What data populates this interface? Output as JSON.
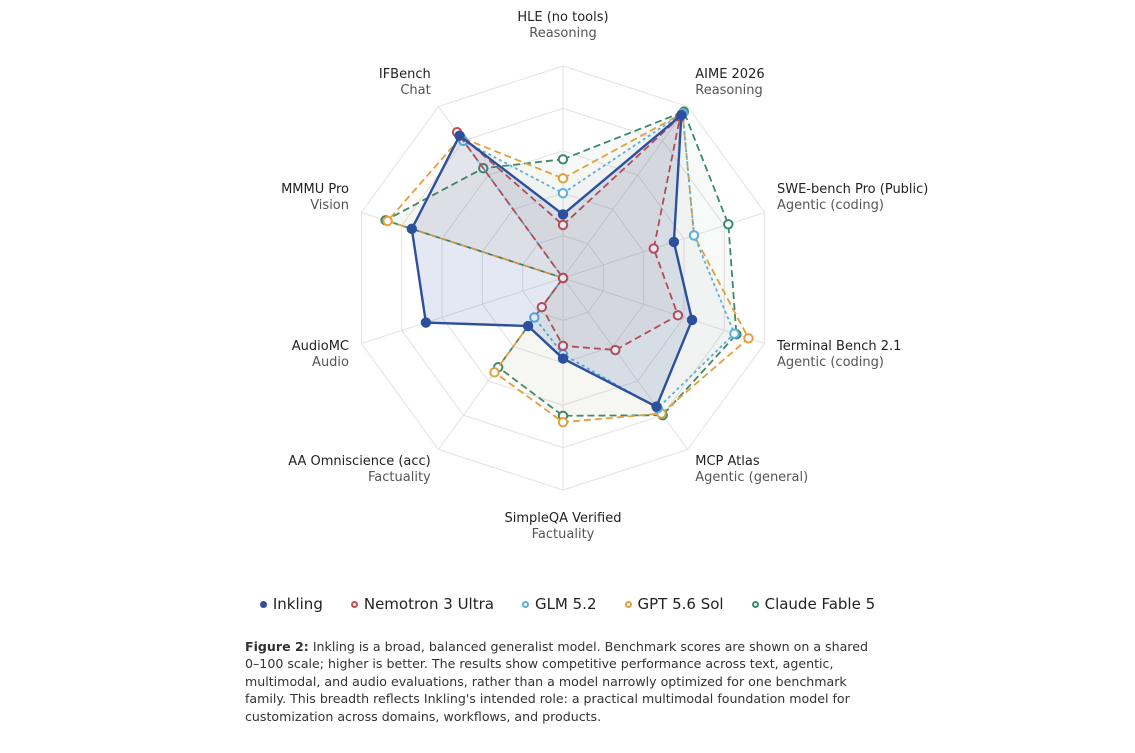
{
  "chart_data": {
    "type": "radar",
    "scale": [
      0,
      100
    ],
    "axes": [
      {
        "title": "HLE (no tools)",
        "subtitle": "Reasoning"
      },
      {
        "title": "AIME 2026",
        "subtitle": "Reasoning"
      },
      {
        "title": "SWE-bench Pro (Public)",
        "subtitle": "Agentic (coding)"
      },
      {
        "title": "Terminal Bench 2.1",
        "subtitle": "Agentic (coding)"
      },
      {
        "title": "MCP Atlas",
        "subtitle": "Agentic (general)"
      },
      {
        "title": "SimpleQA Verified",
        "subtitle": "Factuality"
      },
      {
        "title": "AA Omniscience (acc)",
        "subtitle": "Factuality"
      },
      {
        "title": "AudioMC",
        "subtitle": "Audio"
      },
      {
        "title": "MMMU Pro",
        "subtitle": "Vision"
      },
      {
        "title": "IFBench",
        "subtitle": "Chat"
      }
    ],
    "series": [
      {
        "name": "Inkling",
        "color": "#2c4f9e",
        "dash": "solid",
        "filled_marker": true,
        "values": [
          30,
          95,
          55,
          64,
          75,
          38,
          28,
          68,
          75,
          83
        ]
      },
      {
        "name": "Nemotron 3 Ultra",
        "color": "#c44e4e",
        "dash": "dashed",
        "filled_marker": false,
        "values": [
          25,
          94,
          45,
          57,
          42,
          32,
          17,
          0,
          0,
          85
        ]
      },
      {
        "name": "GLM 5.2",
        "color": "#5aaee0",
        "dash": "dotted",
        "filled_marker": false,
        "values": [
          40,
          96,
          65,
          85,
          76,
          36,
          23,
          0,
          0,
          80
        ]
      },
      {
        "name": "GPT 5.6 Sol",
        "color": "#e0a040",
        "dash": "dashed",
        "filled_marker": false,
        "values": [
          47,
          96,
          65,
          92,
          79,
          68,
          55,
          0,
          87,
          82
        ]
      },
      {
        "name": "Claude Fable 5",
        "color": "#3a8a68",
        "dash": "dashed",
        "filled_marker": false,
        "values": [
          56,
          97,
          82,
          86,
          80,
          65,
          52,
          0,
          88,
          64
        ]
      }
    ]
  },
  "caption": {
    "label": "Figure 2:",
    "text": " Inkling is a broad, balanced generalist model. Benchmark scores are shown on a shared 0–100 scale; higher is better. The results show competitive performance across text, agentic, multimodal, and audio evaluations, rather than a model narrowly optimized for one benchmark family. This breadth reflects Inkling's intended role: a practical multimodal foundation model for customization across domains, workflows, and products."
  }
}
